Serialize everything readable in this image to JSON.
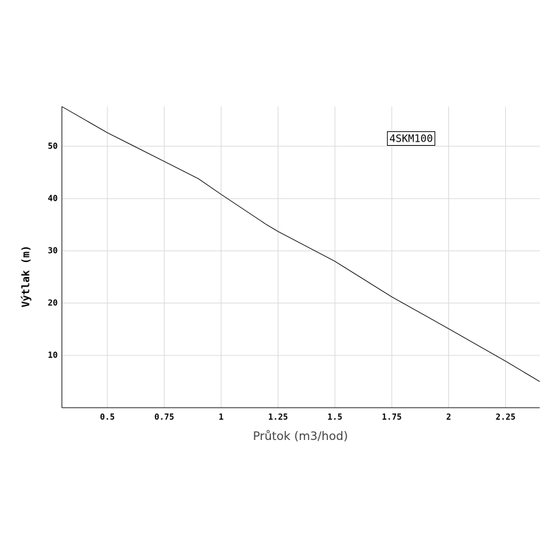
{
  "chart_data": {
    "type": "line",
    "x_label": "Průtok (m3/hod)",
    "y_label": "Výtlak (m)",
    "x": [
      0.3,
      0.5,
      0.6,
      0.75,
      0.9,
      1.0,
      1.2,
      1.25,
      1.5,
      1.75,
      2.0,
      2.25,
      2.4
    ],
    "series": [
      {
        "name": "4SKM100",
        "color": "#000000",
        "values": [
          57.6,
          52.6,
          50.4,
          47.1,
          43.8,
          40.8,
          35.0,
          33.7,
          28.0,
          21.2,
          15.1,
          8.9,
          5.0
        ]
      }
    ],
    "xlim": [
      0.3,
      2.4
    ],
    "ylim": [
      0,
      57.6
    ],
    "xticks": [
      0.5,
      0.75,
      1,
      1.25,
      1.5,
      1.75,
      2,
      2.25
    ],
    "yticks": [
      10,
      20,
      30,
      40,
      50
    ],
    "grid": true,
    "legend": "top-right"
  }
}
